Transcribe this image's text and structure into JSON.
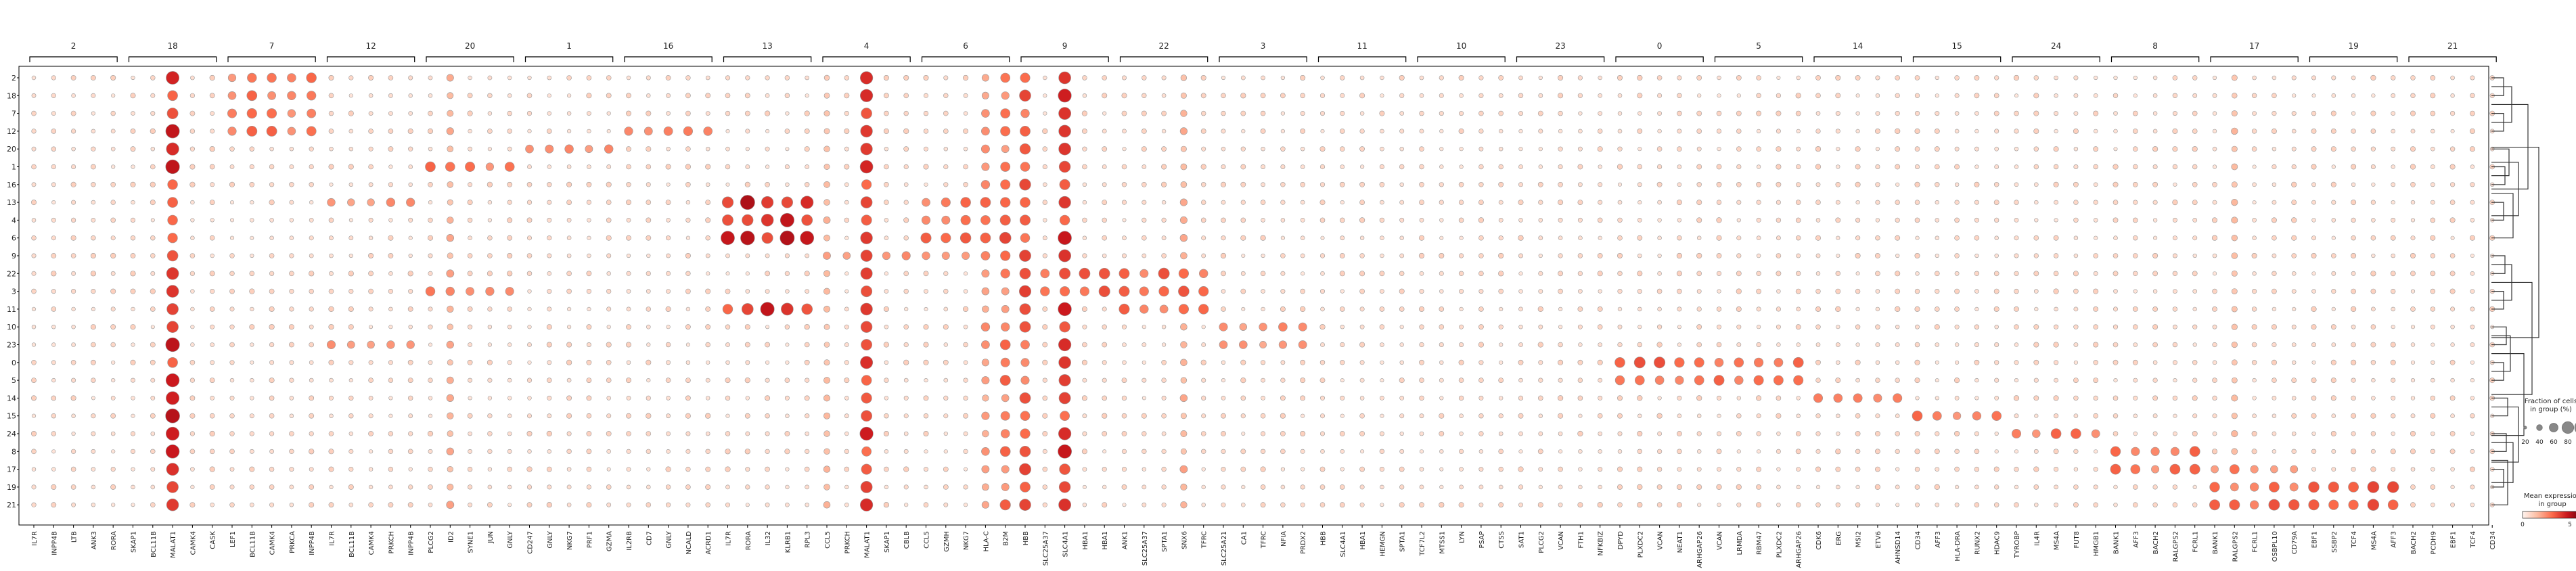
{
  "chart_data": {
    "type": "dotplot",
    "title": "",
    "group_labels": [
      "2",
      "18",
      "7",
      "12",
      "20",
      "1",
      "16",
      "13",
      "4",
      "6",
      "9",
      "22",
      "3",
      "11",
      "10",
      "23",
      "0",
      "5",
      "14",
      "15",
      "24",
      "8",
      "17",
      "19",
      "21"
    ],
    "genes": [
      "IL7R",
      "INPP4B",
      "LTB",
      "ANK3",
      "RORA",
      "SKAP1",
      "BCL11B",
      "MALAT1",
      "CAMK4",
      "CASK",
      "LEF1",
      "BCL11B",
      "CAMK4",
      "PRKCA",
      "INPP4B",
      "IL7R",
      "BCL11B",
      "CAMK4",
      "PRKCH",
      "INPP4B",
      "PLCG2",
      "ID2",
      "SYNE1",
      "JUN",
      "GNLY",
      "CD247",
      "GNLY",
      "NKG7",
      "PRF1",
      "GZMA",
      "IL2RB",
      "CD7",
      "GNLY",
      "NCALD",
      "ACRD1",
      "IL7R",
      "RORA",
      "IL32",
      "KLRB1",
      "RPL3",
      "CCL5",
      "PRKCH",
      "MALAT1",
      "SKAP1",
      "CBLB",
      "CCL5",
      "GZMH",
      "NKG7",
      "HLA-C",
      "B2M",
      "HBB",
      "SLC25A37",
      "SLC4A1",
      "HBA1",
      "HBA1",
      "ANK1",
      "SLC25A37",
      "SPTA1",
      "SNX6",
      "TFRC",
      "SLC25A21",
      "CA1",
      "TFRC",
      "NFIA",
      "PRDX2",
      "HBB",
      "SLC4A1",
      "HBA1",
      "HEMGN",
      "SPTA1",
      "TCF7L2",
      "MTSS1",
      "LYN",
      "PSAP",
      "CTSS",
      "SAT1",
      "PLCG2",
      "VCAN",
      "FTH1",
      "NFKBIZ",
      "DPYD",
      "PLXDC2",
      "VCAN",
      "NEAT1",
      "ARHGAP26",
      "VCAN",
      "LRMDA",
      "RBM47",
      "PLXDC2",
      "ARHGAP26",
      "CDK6",
      "ERG",
      "MSI2",
      "ETV6",
      "AHNSD14",
      "CD34",
      "AFF3",
      "HLA-DRA",
      "RUNX2",
      "HDAC9",
      "TYROBP",
      "IL4R",
      "MS4A",
      "FUT8",
      "HMGB1",
      "BANK1",
      "AFF3",
      "BACH2",
      "RALGPS2",
      "FCRL1",
      "BANK1",
      "RALGPS2",
      "FCRL1",
      "OSBPL10",
      "CD79A",
      "EBF1",
      "SSBP2",
      "TCF4",
      "MS4A",
      "AFF3",
      "BACH2",
      "PCDH9",
      "EBF1",
      "TCF4",
      "CD34"
    ],
    "rows": [
      "2",
      "18",
      "7",
      "12",
      "20",
      "1",
      "16",
      "13",
      "4",
      "6",
      "9",
      "22",
      "3",
      "11",
      "10",
      "23",
      "0",
      "5",
      "14",
      "15",
      "24",
      "8",
      "17",
      "19",
      "21"
    ],
    "blocks": [
      [
        0,
        2,
        0.55
      ],
      [
        1,
        2,
        0.55
      ],
      [
        2,
        2,
        0.55
      ],
      [
        3,
        2,
        0.55
      ],
      [
        7,
        7,
        0.85
      ],
      [
        8,
        7,
        0.85
      ],
      [
        9,
        7,
        0.9
      ],
      [
        13,
        7,
        0.8
      ],
      [
        5,
        4,
        0.55
      ],
      [
        12,
        4,
        0.5
      ],
      [
        7,
        3,
        0.5
      ],
      [
        15,
        3,
        0.5
      ],
      [
        4,
        5,
        0.45
      ],
      [
        3,
        6,
        0.5
      ],
      [
        7,
        9,
        0.55
      ],
      [
        8,
        9,
        0.55
      ],
      [
        9,
        9,
        0.65
      ],
      [
        10,
        8,
        0.5
      ],
      [
        10,
        9,
        0.45
      ],
      [
        11,
        10,
        0.6
      ],
      [
        12,
        10,
        0.6
      ],
      [
        11,
        11,
        0.6
      ],
      [
        12,
        11,
        0.65
      ],
      [
        13,
        11,
        0.6
      ],
      [
        14,
        12,
        0.45
      ],
      [
        15,
        12,
        0.4
      ],
      [
        16,
        16,
        0.65
      ],
      [
        16,
        17,
        0.6
      ],
      [
        17,
        16,
        0.5
      ],
      [
        17,
        17,
        0.55
      ],
      [
        18,
        18,
        0.5
      ],
      [
        19,
        19,
        0.55
      ],
      [
        20,
        20,
        0.55
      ],
      [
        21,
        21,
        0.6
      ],
      [
        22,
        21,
        0.55
      ],
      [
        23,
        22,
        0.55
      ],
      [
        24,
        22,
        0.6
      ],
      [
        23,
        23,
        0.65
      ],
      [
        24,
        23,
        0.65
      ],
      [
        22,
        22,
        0.5
      ]
    ],
    "strong_columns": [
      [
        7,
        0.95
      ],
      [
        42,
        0.9
      ],
      [
        50,
        0.75
      ],
      [
        49,
        0.65
      ],
      [
        48,
        0.5
      ],
      [
        52,
        0.9
      ],
      [
        21,
        0.4
      ],
      [
        111,
        0.35
      ],
      [
        40,
        0.35
      ],
      [
        58,
        0.4
      ]
    ],
    "colorbar": {
      "title_line1": "Mean expression",
      "title_line2": "in group",
      "ticks": [
        "0",
        "5"
      ]
    },
    "size_legend": {
      "title_line1": "Fraction of cells",
      "title_line2": "in group (%)",
      "labels": [
        "20",
        "40",
        "60",
        "80",
        "100"
      ]
    },
    "colormap": [
      "#fff5f0",
      "#fcbba1",
      "#fb6a4a",
      "#cb181d",
      "#67000d"
    ]
  }
}
